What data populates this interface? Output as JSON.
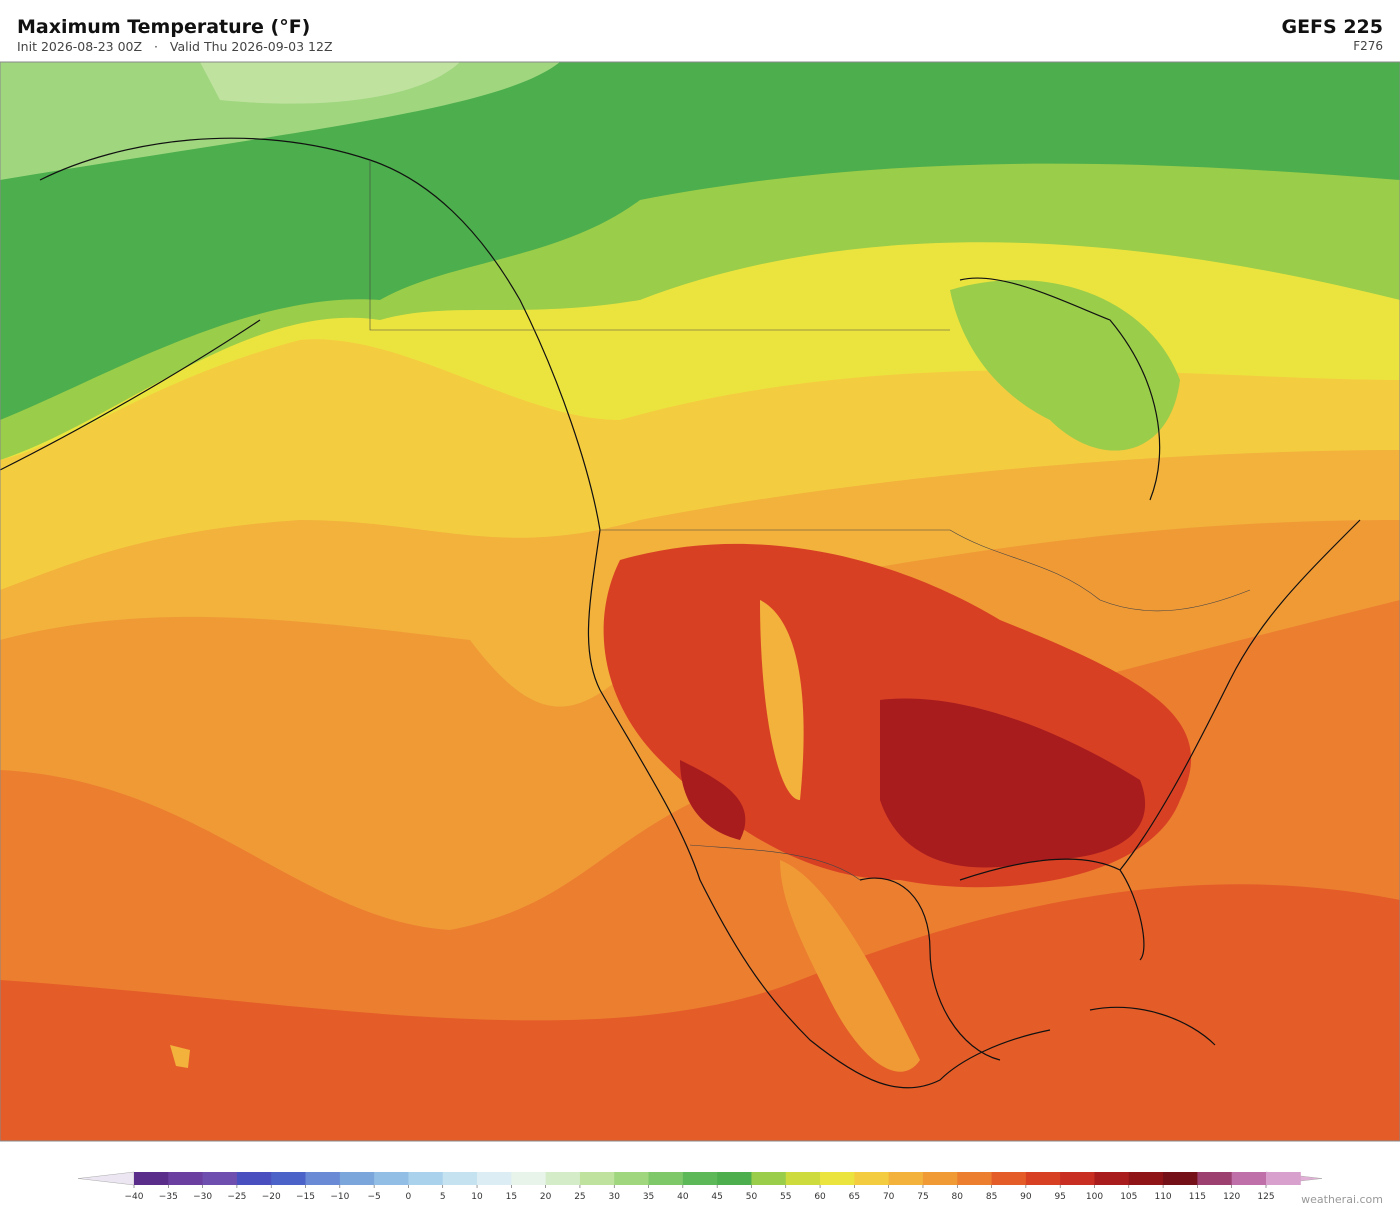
{
  "header": {
    "title": "Maximum Temperature  (°F)",
    "init": "Init 2026-08-23 00Z",
    "separator": "·",
    "valid": "Valid Thu 2026-09-03 12Z",
    "model": "GEFS  225",
    "forecast_hour": "F276"
  },
  "colorbar": {
    "ticks": [
      "−40",
      "−35",
      "−30",
      "−25",
      "−20",
      "−15",
      "−10",
      "−5",
      "0",
      "5",
      "10",
      "15",
      "20",
      "25",
      "30",
      "35",
      "40",
      "45",
      "50",
      "55",
      "60",
      "65",
      "70",
      "75",
      "80",
      "85",
      "90",
      "95",
      "100",
      "105",
      "110",
      "115",
      "120",
      "125"
    ],
    "under_color": "#ece6f2",
    "over_color": "#e2b0d6",
    "colors": [
      "#5a2d8a",
      "#6a3fa0",
      "#6e4fb0",
      "#4a4fc0",
      "#4b62c8",
      "#6a8ad6",
      "#7aa6dc",
      "#92bde4",
      "#aad2ec",
      "#c4e2f0",
      "#dcedf4",
      "#e8f4ea",
      "#d4ecc8",
      "#bfe29f",
      "#9fd67e",
      "#7ec86a",
      "#5db957",
      "#4cae4c",
      "#9acd4a",
      "#cddc3c",
      "#ece43e",
      "#f4cc40",
      "#f2b23c",
      "#f09a36",
      "#ec7e30",
      "#e45c28",
      "#d84024",
      "#c82e22",
      "#a81c1e",
      "#8e1418",
      "#741018",
      "#9c4070",
      "#c070a8",
      "#d8a0cc"
    ]
  },
  "watermark": "weatherai.com"
}
